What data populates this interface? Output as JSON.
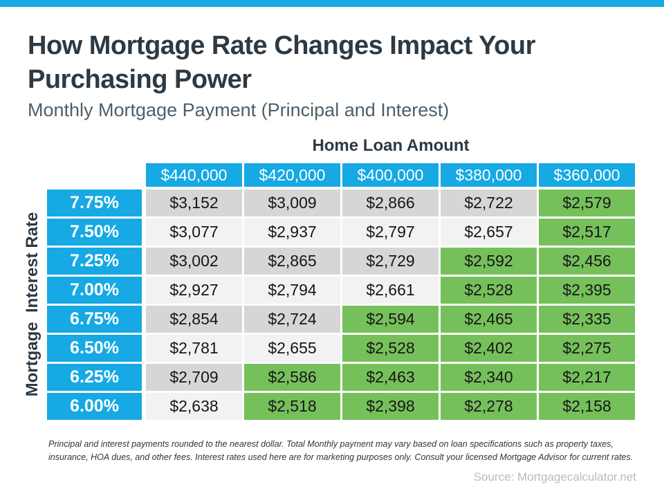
{
  "header": {
    "title_lines": [
      "How Mortgage Rate Changes Impact Your",
      "Purchasing Power"
    ],
    "subtitle": "Monthly Mortgage Payment (Principal and Interest)"
  },
  "table": {
    "column_axis_label": "Home Loan Amount",
    "row_axis_label": "Mortgage  Interest Rate",
    "loan_amounts": [
      "$440,000",
      "$420,000",
      "$400,000",
      "$380,000",
      "$360,000"
    ],
    "rows": [
      {
        "rate": "7.75%",
        "values": [
          "$3,152",
          "$3,009",
          "$2,866",
          "$2,722",
          "$2,579"
        ],
        "green": [
          false,
          false,
          false,
          false,
          true
        ]
      },
      {
        "rate": "7.50%",
        "values": [
          "$3,077",
          "$2,937",
          "$2,797",
          "$2,657",
          "$2,517"
        ],
        "green": [
          false,
          false,
          false,
          false,
          true
        ]
      },
      {
        "rate": "7.25%",
        "values": [
          "$3,002",
          "$2,865",
          "$2,729",
          "$2,592",
          "$2,456"
        ],
        "green": [
          false,
          false,
          false,
          true,
          true
        ]
      },
      {
        "rate": "7.00%",
        "values": [
          "$2,927",
          "$2,794",
          "$2,661",
          "$2,528",
          "$2,395"
        ],
        "green": [
          false,
          false,
          false,
          true,
          true
        ]
      },
      {
        "rate": "6.75%",
        "values": [
          "$2,854",
          "$2,724",
          "$2,594",
          "$2,465",
          "$2,335"
        ],
        "green": [
          false,
          false,
          true,
          true,
          true
        ]
      },
      {
        "rate": "6.50%",
        "values": [
          "$2,781",
          "$2,655",
          "$2,528",
          "$2,402",
          "$2,275"
        ],
        "green": [
          false,
          false,
          true,
          true,
          true
        ]
      },
      {
        "rate": "6.25%",
        "values": [
          "$2,709",
          "$2,586",
          "$2,463",
          "$2,340",
          "$2,217"
        ],
        "green": [
          false,
          true,
          true,
          true,
          true
        ]
      },
      {
        "rate": "6.00%",
        "values": [
          "$2,638",
          "$2,518",
          "$2,398",
          "$2,278",
          "$2,158"
        ],
        "green": [
          false,
          true,
          true,
          true,
          true
        ]
      }
    ]
  },
  "chart_data": {
    "type": "table",
    "title": "How Mortgage Rate Changes Impact Your Purchasing Power",
    "subtitle": "Monthly Mortgage Payment (Principal and Interest)",
    "column_axis": "Home Loan Amount",
    "row_axis": "Mortgage Interest Rate",
    "columns": [
      440000,
      420000,
      400000,
      380000,
      360000
    ],
    "rates": [
      7.75,
      7.5,
      7.25,
      7.0,
      6.75,
      6.5,
      6.25,
      6.0
    ],
    "payments": [
      [
        3152,
        3009,
        2866,
        2722,
        2579
      ],
      [
        3077,
        2937,
        2797,
        2657,
        2517
      ],
      [
        3002,
        2865,
        2729,
        2592,
        2456
      ],
      [
        2927,
        2794,
        2661,
        2528,
        2395
      ],
      [
        2854,
        2724,
        2594,
        2465,
        2335
      ],
      [
        2781,
        2655,
        2528,
        2402,
        2275
      ],
      [
        2709,
        2586,
        2463,
        2340,
        2217
      ],
      [
        2638,
        2518,
        2398,
        2278,
        2158
      ]
    ],
    "highlight_meaning": "green cells mark lower monthly payments (roughly $2,600 and below)"
  },
  "footnote": "Principal and interest payments rounded to the nearest dollar. Total Monthly payment may vary based on loan specifications such as property taxes, insurance, HOA dues, and other fees. Interest rates used here are for marketing purposes only. Consult your licensed Mortgage Advisor for current rates.",
  "source": "Source: Mortgagecalculator.net",
  "colors": {
    "accent_blue": "#16A9E3",
    "highlight_green": "#76C05B",
    "row_gray": "#D6D6D6",
    "row_light": "#F2F2F2",
    "title_dark": "#2D3943",
    "subtitle_gray": "#4E5E69",
    "source_gray": "#B2BDC5"
  }
}
